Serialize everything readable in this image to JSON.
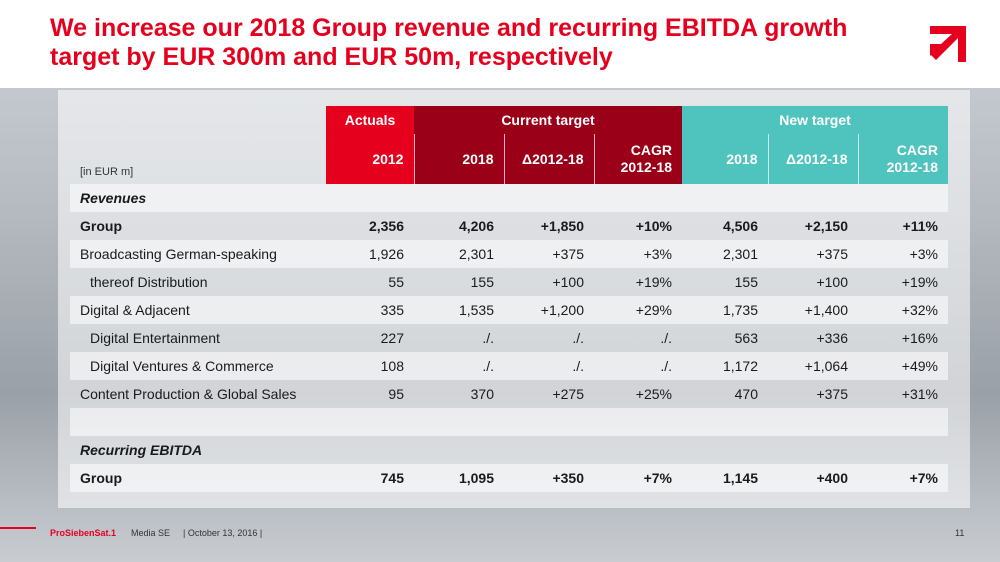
{
  "title": "We increase our 2018 Group revenue and recurring EBITDA growth target by EUR 300m and EUR 50m, respectively",
  "colors": {
    "brand_red": "#e5001e",
    "dark_red": "#9b0019",
    "teal": "#4fc3bd"
  },
  "logo_icon": "prosieben-arrow-icon",
  "table": {
    "group_headers": {
      "actuals": "Actuals",
      "current": "Current target",
      "new": "New target"
    },
    "unit_label": "[in EUR m]",
    "columns": {
      "a2012": "2012",
      "c2018": "2018",
      "cdelta": "Δ2012-18",
      "ccagr_1": "CAGR",
      "ccagr_2": "2012-18",
      "n2018": "2018",
      "ndelta": "Δ2012-18",
      "ncagr_1": "CAGR",
      "ncagr_2": "2012-18"
    },
    "revenues_label": "Revenues",
    "ebitda_label": "Recurring EBITDA",
    "rows": [
      {
        "label": "Group",
        "v": [
          "2,356",
          "4,206",
          "+1,850",
          "+10%",
          "4,506",
          "+2,150",
          "+11%"
        ]
      },
      {
        "label": "Broadcasting German-speaking",
        "v": [
          "1,926",
          "2,301",
          "+375",
          "+3%",
          "2,301",
          "+375",
          "+3%"
        ]
      },
      {
        "label": "thereof Distribution",
        "v": [
          "55",
          "155",
          "+100",
          "+19%",
          "155",
          "+100",
          "+19%"
        ]
      },
      {
        "label": "Digital & Adjacent",
        "v": [
          "335",
          "1,535",
          "+1,200",
          "+29%",
          "1,735",
          "+1,400",
          "+32%"
        ]
      },
      {
        "label": "Digital Entertainment",
        "v": [
          "227",
          "./.",
          "./.",
          "./.",
          "563",
          "+336",
          "+16%"
        ]
      },
      {
        "label": "Digital Ventures & Commerce",
        "v": [
          "108",
          "./.",
          "./.",
          "./.",
          "1,172",
          "+1,064",
          "+49%"
        ]
      },
      {
        "label": "Content Production & Global Sales",
        "v": [
          "95",
          "370",
          "+275",
          "+25%",
          "470",
          "+375",
          "+31%"
        ]
      }
    ],
    "ebitda_row": {
      "label": "Group",
      "v": [
        "745",
        "1,095",
        "+350",
        "+7%",
        "1,145",
        "+400",
        "+7%"
      ]
    }
  },
  "footer": {
    "brand": "ProSiebenSat.1",
    "brand_suffix": "Media SE",
    "date": "| October 13, 2016 |",
    "page": "11"
  }
}
